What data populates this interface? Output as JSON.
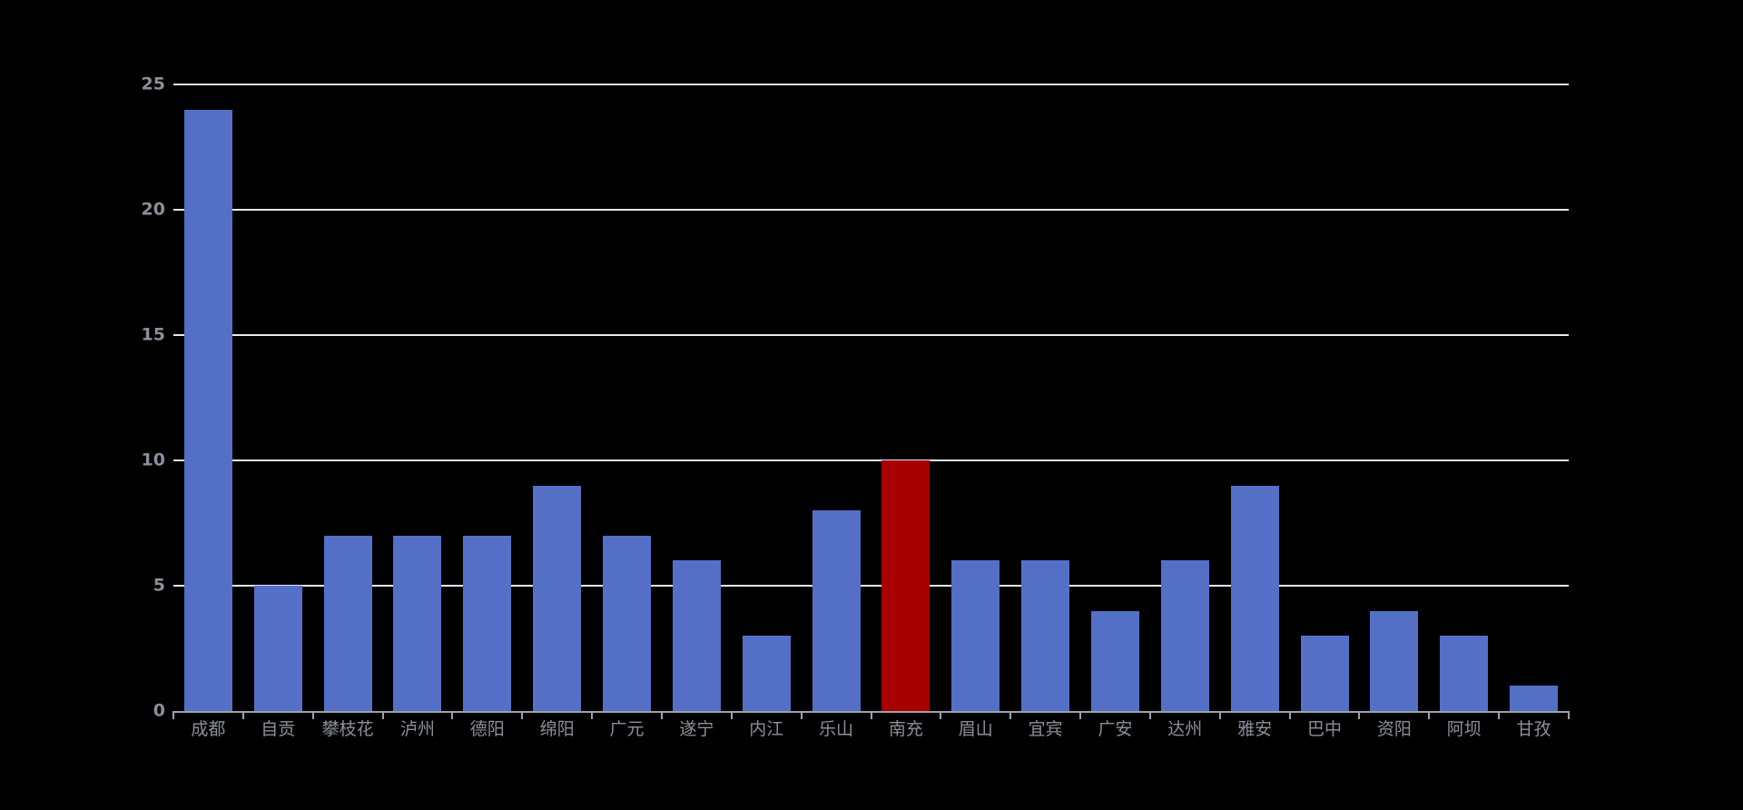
{
  "chart": {
    "background": "#000000",
    "colors": {
      "bar": "#5470c6",
      "highlight": "#a80000",
      "axis_line": "#9ca1aa",
      "label": "#8b9099",
      "grid_line": "#e4e9f3"
    }
  },
  "chart_data": {
    "type": "bar",
    "title": "",
    "xlabel": "",
    "ylabel": "",
    "categories": [
      "成都",
      "自贡",
      "攀枝花",
      "泸州",
      "德阳",
      "绵阳",
      "广元",
      "遂宁",
      "内江",
      "乐山",
      "南充",
      "眉山",
      "宜宾",
      "广安",
      "达州",
      "雅安",
      "巴中",
      "资阳",
      "阿坝",
      "甘孜"
    ],
    "values": [
      24,
      5,
      7,
      7,
      7,
      9,
      7,
      6,
      3,
      8,
      10,
      6,
      6,
      4,
      6,
      9,
      3,
      4,
      3,
      1
    ],
    "highlight": {
      "index": 10,
      "category": "南充",
      "value": 10,
      "color": "#a80000"
    },
    "ylim": [
      0,
      25
    ],
    "y_ticks": [
      0,
      5,
      10,
      15,
      20,
      25
    ],
    "grid": "horizontal-only",
    "legend": "none"
  }
}
